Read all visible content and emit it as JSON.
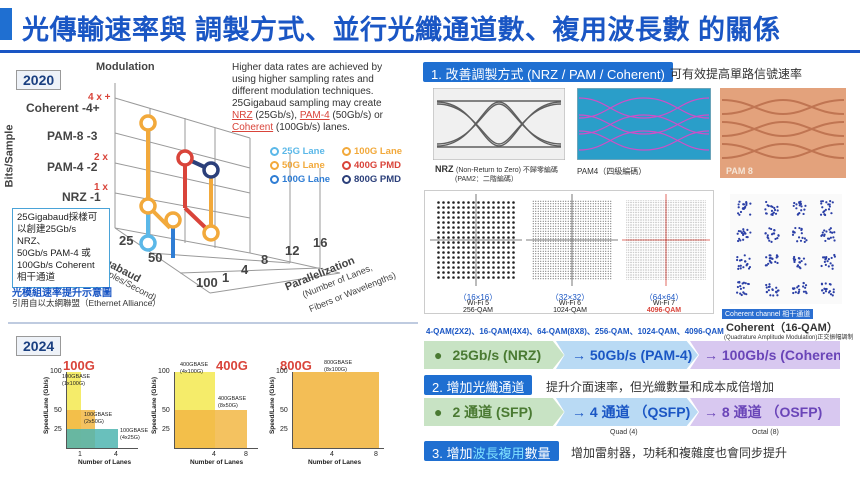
{
  "title": "光傳輸速率與 調製方式、並行光纖通道數、複用波長數 的關係",
  "left": {
    "year_top": "2020",
    "cube": {
      "axis_modulation": "Modulation",
      "axis_bits": "Bits/Sample",
      "axis_gigabaud": "Gigabaud",
      "axis_gigabaud_sub": "(Samples/Second)",
      "axis_parallel": "Parallelization",
      "axis_parallel_sub1": "(Number of Lanes,",
      "axis_parallel_sub2": "Fibers or Wavelengths)",
      "y_labels": [
        "Coherent -4+",
        "PAM-8 -3",
        "PAM-4 -2",
        "NRZ -1"
      ],
      "y_marks": [
        "4 x +",
        "2 x",
        "1 x"
      ],
      "x_ticks": [
        "25",
        "50",
        "100"
      ],
      "z_ticks": [
        "1",
        "4",
        "8",
        "12",
        "16"
      ]
    },
    "desc_lines": [
      "Higher data rates are achieved by",
      "using higher sampling rates and",
      "different modulation techniques.",
      "25Gigabaud sampling may create"
    ],
    "desc_nrz": "NRZ",
    "desc_nrz_rate": " (25Gb/s), ",
    "desc_pam4": "PAM-4",
    "desc_pam4_rate": " (50Gb/s) or",
    "desc_coherent": "Coherent",
    "desc_coherent_rate": " (100Gb/s) lanes.",
    "legend": [
      {
        "label": "25G Lane",
        "color": "#5bb8e8"
      },
      {
        "label": "100G Lane",
        "color": "#f2a93b"
      },
      {
        "label": "50G Lane",
        "color": "#f2a93b"
      },
      {
        "label": "400G PMD",
        "color": "#d9443a"
      },
      {
        "label": "100G Lane",
        "color": "#2f7dd4"
      },
      {
        "label": "800G PMD",
        "color": "#2b3f7a"
      }
    ],
    "note_box": [
      "25Gigabaud採樣可",
      "以創建25Gb/s NRZ、",
      "50Gb/s PAM-4 或",
      "100Gb/s Coherent",
      "相干通道"
    ],
    "caption1": "光模組速率提升示意圖",
    "caption2": "引用自以太網聯盟（Ethernet Alliance）",
    "year_bottom": "2024",
    "charts": [
      {
        "title": "100G",
        "ylabel": "Speed/Lane (Gb/s)",
        "xlabel": "Number of Lanes",
        "yticks": [
          "100",
          "50",
          "25"
        ],
        "xticks": [
          "1",
          "4"
        ],
        "labels": [
          "100GBASE (1x100G)",
          "100GBASE (2x50G)",
          "100GBASE (4x25G)"
        ]
      },
      {
        "title": "400G",
        "ylabel": "Speed/Lane (Gb/s)",
        "xlabel": "Number of Lanes",
        "yticks": [
          "100",
          "50",
          "25"
        ],
        "xticks": [
          "4",
          "8"
        ],
        "labels": [
          "400GBASE (4x100G)",
          "400GBASE (8x50G)"
        ]
      },
      {
        "title": "800G",
        "ylabel": "Speed/Lane (Gb/s)",
        "xlabel": "Number of Lanes",
        "yticks": [
          "100",
          "50",
          "25"
        ],
        "xticks": [
          "4",
          "8"
        ],
        "labels": [
          "800GBASE (8x100G)"
        ]
      }
    ]
  },
  "right": {
    "h1_label": "1. 改善調製方式 (NRZ / PAM / Coherent)",
    "h1_note": "可有效提高單路信號速率",
    "nrz_caption1": "NRZ",
    "nrz_caption2": "(Non-Return to Zero) 不歸零編碼",
    "nrz_caption3": "(PAM2：二階編碼）",
    "pam4_caption": "PAM4（四級編碼）",
    "pam8_caption": "PAM 8",
    "qam": [
      {
        "dims": "（16×16）",
        "wifi": "Wi-Fi 5",
        "name": "256-QAM"
      },
      {
        "dims": "（32×32）",
        "wifi": "Wi-Fi 6",
        "name": "1024-QAM"
      },
      {
        "dims": "（64×64）",
        "wifi": "Wi-Fi 7",
        "name": "4096-QAM"
      }
    ],
    "coherent_tag": "Coherent channel  相干通道",
    "coherent_title": "Coherent（16-QAM）",
    "coherent_sub": "(Quadrature Amplitude Modulation)正交振幅調制",
    "qam_line": "4-QAM(2X2)、16-QAM(4X4)、64-QAM(8X8)、256-QAM、1024-QAM、4096-QAM",
    "row1": [
      "25Gb/s (NRZ)",
      "→ 50Gb/s (PAM-4)",
      "→ 100Gb/s (Coherent)"
    ],
    "h2_label": "2. 增加光纖通道",
    "h2_note": "提升介面速率，但光纖數量和成本成倍增加",
    "row2": [
      "2 通道 (SFP)",
      "→ 4 通道 （QSFP)",
      "→ 8 通道 （OSFP)"
    ],
    "row2_sub": [
      "Quad (4)",
      "Octal (8)"
    ],
    "h3_label_a": "3. 增加",
    "h3_label_b": "波長複用",
    "h3_label_c": "數量",
    "h3_note": "增加雷射器，功耗和複雜度也會同步提升"
  }
}
